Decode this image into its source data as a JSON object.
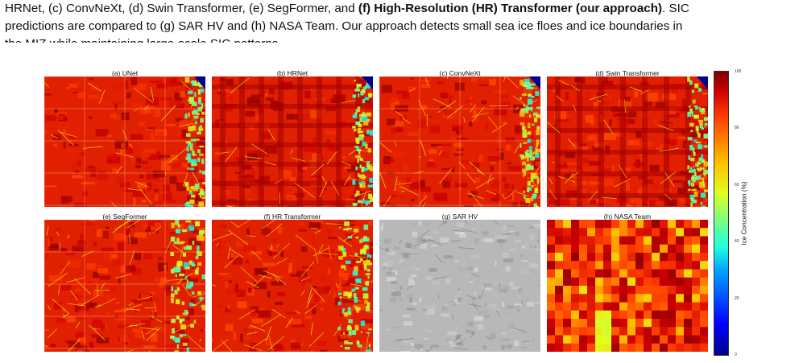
{
  "caption": {
    "line1_prefix": "HRNet, (c) ConvNeXt, (d) Swin Transformer, (e) SegFormer, and ",
    "line1_bold": "(f) High-Resolution (HR) Transformer (our approach)",
    "line1_suffix": ". SIC",
    "line2": "predictions are compared to (g) SAR HV and (h) NASA Team. Our approach detects small sea ice floes and ice boundaries in",
    "line3": "the MIZ while maintaining large-scale SIC patterns."
  },
  "panels": [
    {
      "title": "(a) UNet",
      "kind": "unet"
    },
    {
      "title": "(b) HRNet",
      "kind": "hrnet"
    },
    {
      "title": "(c) ConvNeXt",
      "kind": "convnext"
    },
    {
      "title": "(d) Swin Transformer",
      "kind": "swin"
    },
    {
      "title": "(e) SegFormer",
      "kind": "segformer"
    },
    {
      "title": "(f) HR Transformer",
      "kind": "hrt"
    },
    {
      "title": "(g) SAR HV",
      "kind": "sar"
    },
    {
      "title": "(h) NASA Team",
      "kind": "nasa"
    }
  ],
  "colorbar": {
    "label": "Ice Concentration (%)",
    "ticks": [
      "100",
      "80",
      "60",
      "40",
      "20",
      "0"
    ],
    "range": [
      0,
      100
    ],
    "colormap": "jet"
  }
}
